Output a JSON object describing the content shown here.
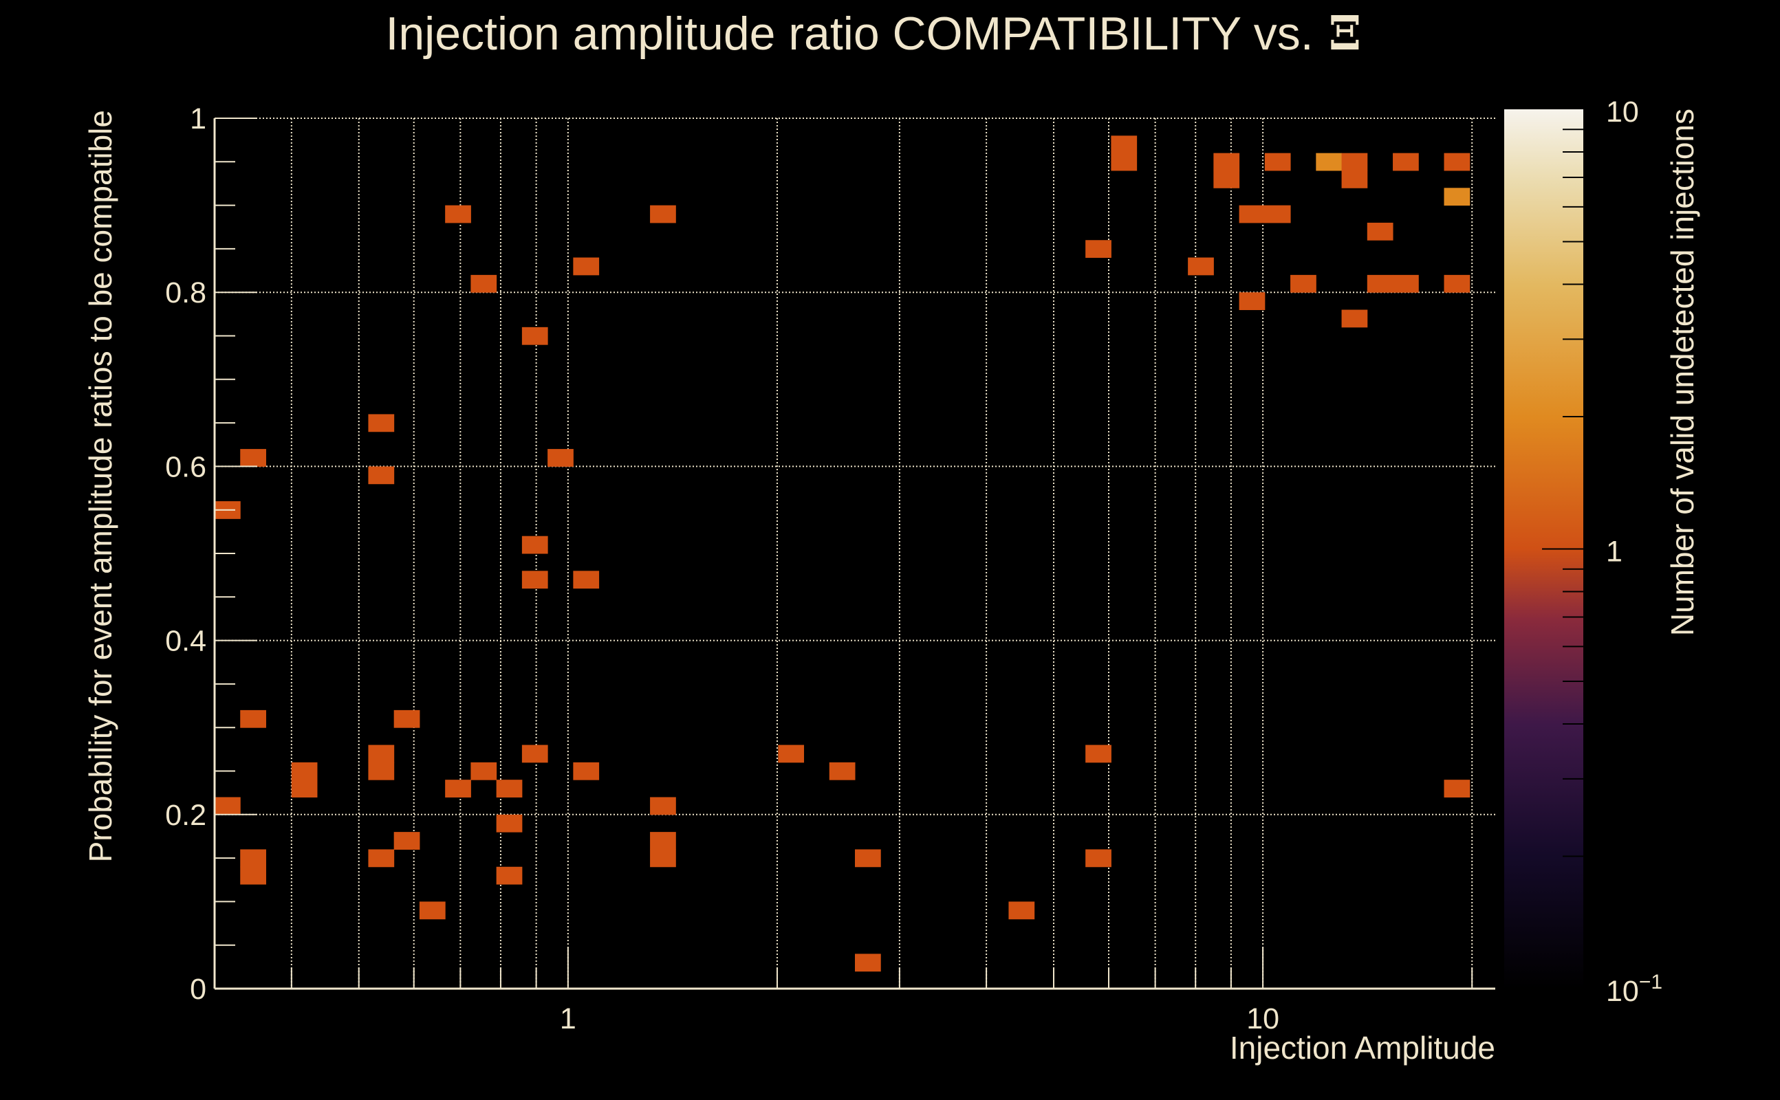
{
  "chart_data": {
    "type": "heatmap",
    "title": "Injection amplitude ratio COMPATIBILITY vs.",
    "title_symbol": "Ξ",
    "xlabel": "Injection Amplitude",
    "ylabel": "Probability for event amplitude ratios to be compatible",
    "zlabel": "Number of valid undetected injections",
    "xscale": "log",
    "xlim": [
      0.31,
      21.6
    ],
    "ylim": [
      0,
      1
    ],
    "zlim": [
      0.1,
      10
    ],
    "zscale": "log",
    "x_bins": 50,
    "y_bins": 50,
    "x_tick_labels": [
      {
        "value": 1,
        "label": "1"
      },
      {
        "value": 10,
        "label": "10"
      }
    ],
    "y_tick_labels": [
      {
        "value": 0,
        "label": "0"
      },
      {
        "value": 0.2,
        "label": "0.2"
      },
      {
        "value": 0.4,
        "label": "0.4"
      },
      {
        "value": 0.6,
        "label": "0.6"
      },
      {
        "value": 0.8,
        "label": "0.8"
      },
      {
        "value": 1,
        "label": "1"
      }
    ],
    "z_tick_labels": [
      {
        "value": 0.1,
        "label": "10",
        "exp": "−1"
      },
      {
        "value": 1,
        "label": "1",
        "exp": ""
      },
      {
        "value": 10,
        "label": "10",
        "exp": ""
      }
    ],
    "grid": true,
    "colors": {
      "count_1": "#d35212",
      "count_2": "#e08a20",
      "text": "#f0e6cc"
    },
    "cells": [
      [
        0.324,
        0.55,
        1
      ],
      [
        0.352,
        0.61,
        1
      ],
      [
        0.352,
        0.31,
        1
      ],
      [
        0.417,
        0.23,
        1
      ],
      [
        0.417,
        0.25,
        1
      ],
      [
        0.324,
        0.21,
        1
      ],
      [
        0.352,
        0.15,
        1
      ],
      [
        0.352,
        0.13,
        1
      ],
      [
        0.538,
        0.65,
        1
      ],
      [
        0.538,
        0.59,
        1
      ],
      [
        0.538,
        0.27,
        1
      ],
      [
        0.538,
        0.25,
        1
      ],
      [
        0.538,
        0.15,
        1
      ],
      [
        0.586,
        0.31,
        1
      ],
      [
        0.586,
        0.17,
        1
      ],
      [
        0.638,
        0.09,
        1
      ],
      [
        0.694,
        0.89,
        1
      ],
      [
        0.694,
        0.23,
        1
      ],
      [
        0.756,
        0.81,
        1
      ],
      [
        0.756,
        0.25,
        1
      ],
      [
        0.823,
        0.23,
        1
      ],
      [
        0.823,
        0.19,
        1
      ],
      [
        0.823,
        0.13,
        1
      ],
      [
        0.896,
        0.75,
        1
      ],
      [
        0.896,
        0.51,
        1
      ],
      [
        0.896,
        0.47,
        1
      ],
      [
        0.896,
        0.27,
        1
      ],
      [
        0.975,
        0.61,
        1
      ],
      [
        1.061,
        0.83,
        1
      ],
      [
        1.061,
        0.47,
        1
      ],
      [
        1.061,
        0.25,
        1
      ],
      [
        1.369,
        0.89,
        1
      ],
      [
        1.369,
        0.21,
        1
      ],
      [
        1.369,
        0.17,
        1
      ],
      [
        1.369,
        0.15,
        1
      ],
      [
        2.093,
        0.27,
        1
      ],
      [
        2.48,
        0.25,
        1
      ],
      [
        2.7,
        0.15,
        1
      ],
      [
        2.7,
        0.03,
        1
      ],
      [
        4.49,
        0.09,
        1
      ],
      [
        5.79,
        0.85,
        1
      ],
      [
        5.79,
        0.27,
        1
      ],
      [
        5.79,
        0.15,
        1
      ],
      [
        6.31,
        0.97,
        1
      ],
      [
        6.31,
        0.95,
        1
      ],
      [
        8.14,
        0.83,
        1
      ],
      [
        8.86,
        0.95,
        1
      ],
      [
        8.86,
        0.93,
        1
      ],
      [
        9.64,
        0.89,
        1
      ],
      [
        10.5,
        0.89,
        1
      ],
      [
        9.64,
        0.79,
        1
      ],
      [
        10.5,
        0.95,
        1
      ],
      [
        11.43,
        0.81,
        1
      ],
      [
        12.44,
        0.95,
        2
      ],
      [
        13.54,
        0.95,
        1
      ],
      [
        13.54,
        0.93,
        1
      ],
      [
        13.54,
        0.77,
        1
      ],
      [
        14.74,
        0.87,
        1
      ],
      [
        14.74,
        0.81,
        1
      ],
      [
        16.05,
        0.81,
        1
      ],
      [
        16.05,
        0.95,
        1
      ],
      [
        19.01,
        0.95,
        1
      ],
      [
        19.01,
        0.91,
        2
      ],
      [
        19.01,
        0.81,
        1
      ],
      [
        19.01,
        0.23,
        1
      ]
    ]
  }
}
